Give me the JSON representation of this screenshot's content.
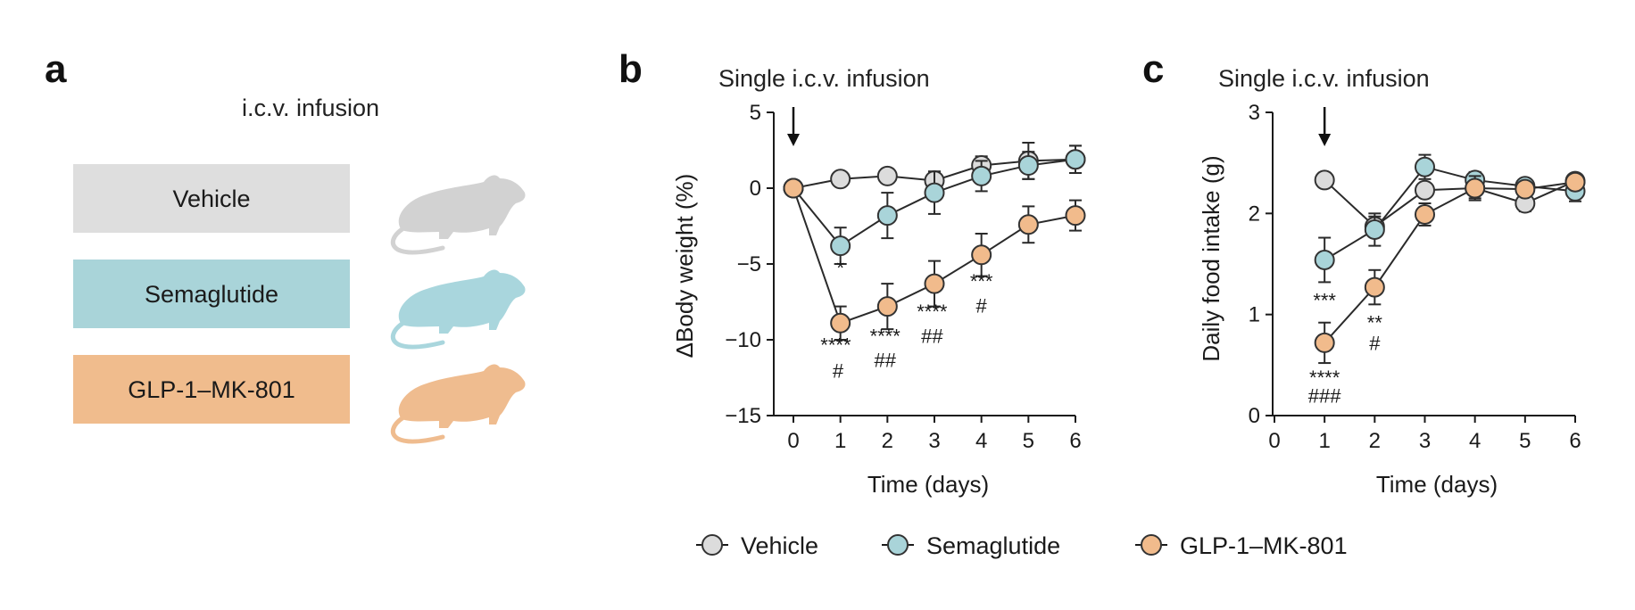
{
  "colors": {
    "vehicle": "#dcdcdc",
    "semaglutide": "#a9d4d9",
    "glp1": "#f1bb8c",
    "vehicle_box": "#dedede",
    "semaglutide_box": "#a9d4d9",
    "glp1_box": "#f0bc8d",
    "vehicle_rat": "#d2d2d2",
    "semaglutide_rat": "#a9d6dd",
    "glp1_rat": "#efbc8f"
  },
  "panel_a": {
    "letter": "a",
    "heading": "i.c.v. infusion",
    "groups": [
      {
        "label": "Vehicle",
        "color_key": "vehicle_box",
        "icon": "rat-icon"
      },
      {
        "label": "Semaglutide",
        "color_key": "semaglutide_box",
        "icon": "rat-icon"
      },
      {
        "label": "GLP-1–MK-801",
        "color_key": "glp1_box",
        "icon": "rat-icon"
      }
    ]
  },
  "legend": {
    "placement": "bottom-center",
    "items": [
      {
        "label": "Vehicle",
        "color_key": "vehicle"
      },
      {
        "label": "Semaglutide",
        "color_key": "semaglutide"
      },
      {
        "label": "GLP-1–MK-801",
        "color_key": "glp1"
      }
    ]
  },
  "chart_data": [
    {
      "panel": "b",
      "type": "line",
      "annotation": "Single i.c.v. infusion",
      "arrow_at_x": 0,
      "xlabel": "Time (days)",
      "ylabel": "ΔBody weight (%)",
      "xlim": [
        0,
        6
      ],
      "ylim": [
        -15,
        5
      ],
      "xticks": [
        0,
        1,
        2,
        3,
        4,
        5,
        6
      ],
      "yticks": [
        5,
        0,
        -5,
        -10,
        -15
      ],
      "ytick_labels": [
        "5",
        "0",
        "−5",
        "−10",
        "−15"
      ],
      "grid": false,
      "series": [
        {
          "name": "Vehicle",
          "color_key": "vehicle",
          "x": [
            0,
            1,
            2,
            3,
            4,
            5,
            6
          ],
          "y": [
            0,
            0.6,
            0.8,
            0.5,
            1.5,
            1.8,
            1.9
          ],
          "err": [
            0,
            0.3,
            0.3,
            0.6,
            0.6,
            1.2,
            0.9
          ]
        },
        {
          "name": "Semaglutide",
          "color_key": "semaglutide",
          "x": [
            0,
            1,
            2,
            3,
            4,
            5,
            6
          ],
          "y": [
            0,
            -3.8,
            -1.8,
            -0.3,
            0.8,
            1.5,
            1.9
          ],
          "err": [
            0,
            1.2,
            1.5,
            1.4,
            1.0,
            0.9,
            0.9
          ]
        },
        {
          "name": "GLP-1–MK-801",
          "color_key": "glp1",
          "x": [
            0,
            1,
            2,
            3,
            4,
            5,
            6
          ],
          "y": [
            0,
            -8.9,
            -7.8,
            -6.3,
            -4.4,
            -2.4,
            -1.8
          ],
          "err": [
            0,
            1.1,
            1.5,
            1.5,
            1.4,
            1.2,
            1.0
          ]
        }
      ],
      "significance": [
        {
          "x": 1,
          "y": -5.7,
          "text": "*"
        },
        {
          "x": 0.9,
          "y": -10.8,
          "text": "****"
        },
        {
          "x": 0.95,
          "y": -12.5,
          "text": "#"
        },
        {
          "x": 1.95,
          "y": -10.2,
          "text": "****"
        },
        {
          "x": 1.95,
          "y": -11.8,
          "text": "##"
        },
        {
          "x": 2.95,
          "y": -8.6,
          "text": "****"
        },
        {
          "x": 2.95,
          "y": -10.2,
          "text": "##"
        },
        {
          "x": 4.0,
          "y": -6.6,
          "text": "***"
        },
        {
          "x": 4.0,
          "y": -8.2,
          "text": "#"
        }
      ]
    },
    {
      "panel": "c",
      "type": "line",
      "annotation": "Single i.c.v. infusion",
      "arrow_at_x": 1,
      "xlabel": "Time (days)",
      "ylabel": "Daily food intake (g)",
      "xlim": [
        0,
        6
      ],
      "ylim": [
        0,
        3
      ],
      "xticks": [
        0,
        1,
        2,
        3,
        4,
        5,
        6
      ],
      "yticks": [
        3,
        2,
        1,
        0
      ],
      "ytick_labels": [
        "3",
        "2",
        "1",
        "0"
      ],
      "grid": false,
      "series": [
        {
          "name": "Vehicle",
          "color_key": "vehicle",
          "x": [
            1,
            2,
            3,
            4,
            5,
            6
          ],
          "y": [
            2.33,
            1.87,
            2.23,
            2.25,
            2.1,
            2.32
          ],
          "err": [
            0.05,
            0.1,
            0.07,
            0.1,
            0.08,
            0.07
          ]
        },
        {
          "name": "Semaglutide",
          "color_key": "semaglutide",
          "x": [
            1,
            2,
            3,
            4,
            5,
            6
          ],
          "y": [
            1.54,
            1.84,
            2.46,
            2.33,
            2.27,
            2.22
          ],
          "err": [
            0.22,
            0.16,
            0.12,
            0.08,
            0.07,
            0.1
          ]
        },
        {
          "name": "GLP-1–MK-801",
          "color_key": "glp1",
          "x": [
            1,
            2,
            3,
            4,
            5,
            6
          ],
          "y": [
            0.72,
            1.27,
            1.99,
            2.25,
            2.24,
            2.31
          ],
          "err": [
            0.2,
            0.17,
            0.11,
            0.12,
            0.07,
            0.06
          ]
        }
      ],
      "significance": [
        {
          "x": 1,
          "y": 1.07,
          "text": "***"
        },
        {
          "x": 2,
          "y": 0.85,
          "text": "**"
        },
        {
          "x": 2,
          "y": 0.65,
          "text": "#"
        },
        {
          "x": 1,
          "y": 0.31,
          "text": "****"
        },
        {
          "x": 1,
          "y": 0.13,
          "text": "###"
        }
      ]
    }
  ]
}
